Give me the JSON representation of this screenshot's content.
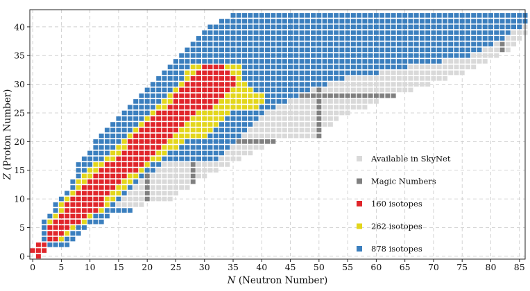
{
  "chart_data": {
    "type": "scatter",
    "subtype": "nuclide-chart",
    "xlabel_var": "N",
    "xlabel_text": " (Neutron Number)",
    "ylabel_var": "Z",
    "ylabel_text": " (Proton Number)",
    "xlim": [
      -0.5,
      86
    ],
    "ylim": [
      -0.5,
      43
    ],
    "xticks": [
      0,
      5,
      10,
      15,
      20,
      25,
      30,
      35,
      40,
      45,
      50,
      55,
      60,
      65,
      70,
      75,
      80,
      85
    ],
    "yticks": [
      0,
      5,
      10,
      15,
      20,
      25,
      30,
      35,
      40
    ],
    "grid": true,
    "legend_position": "lower-right",
    "magic_numbers": [
      2,
      8,
      20,
      28,
      50,
      82
    ],
    "colors": {
      "available": "#d9d9d9",
      "magic": "#808080",
      "set160": "#e0262b",
      "set262": "#e3d61c",
      "set878": "#3b7fbe"
    },
    "series": [
      {
        "name": "Available in SkyNet",
        "key": "available"
      },
      {
        "name": "Magic Numbers",
        "key": "magic"
      },
      {
        "name": "160 isotopes",
        "key": "set160"
      },
      {
        "name": "262 isotopes",
        "key": "set262"
      },
      {
        "name": "878 isotopes",
        "key": "set878"
      }
    ],
    "rows": [
      {
        "z": 0,
        "available": [
          1,
          1
        ],
        "c878": null,
        "c262": null,
        "c160": [
          1,
          1
        ]
      },
      {
        "z": 1,
        "available": [
          0,
          2
        ],
        "c878": null,
        "c262": null,
        "c160": [
          0,
          2
        ]
      },
      {
        "z": 2,
        "available": [
          1,
          6
        ],
        "c878": [
          1,
          6
        ],
        "c262": [
          1,
          2
        ],
        "c160": [
          1,
          2
        ]
      },
      {
        "z": 3,
        "available": [
          2,
          7
        ],
        "c878": [
          2,
          7
        ],
        "c262": [
          3,
          5
        ],
        "c160": [
          3,
          4
        ]
      },
      {
        "z": 4,
        "available": [
          2,
          8
        ],
        "c878": [
          2,
          8
        ],
        "c262": [
          3,
          6
        ],
        "c160": [
          3,
          5
        ]
      },
      {
        "z": 5,
        "available": [
          2,
          9
        ],
        "c878": [
          2,
          9
        ],
        "c262": [
          3,
          7
        ],
        "c160": [
          3,
          6
        ]
      },
      {
        "z": 6,
        "available": [
          2,
          12
        ],
        "c878": [
          2,
          12
        ],
        "c262": [
          3,
          9
        ],
        "c160": [
          4,
          8
        ]
      },
      {
        "z": 7,
        "available": [
          3,
          13
        ],
        "c878": [
          3,
          13
        ],
        "c262": [
          4,
          10
        ],
        "c160": [
          5,
          9
        ]
      },
      {
        "z": 8,
        "available": [
          4,
          17
        ],
        "c878": [
          4,
          17
        ],
        "c262": [
          5,
          12
        ],
        "c160": [
          6,
          11
        ]
      },
      {
        "z": 9,
        "available": [
          4,
          19
        ],
        "c878": [
          4,
          14
        ],
        "c262": [
          5,
          13
        ],
        "c160": [
          6,
          12
        ]
      },
      {
        "z": 10,
        "available": [
          5,
          24
        ],
        "c878": [
          5,
          15
        ],
        "c262": [
          6,
          14
        ],
        "c160": [
          7,
          12
        ]
      },
      {
        "z": 11,
        "available": [
          6,
          25
        ],
        "c878": [
          6,
          16
        ],
        "c262": [
          7,
          15
        ],
        "c160": [
          8,
          13
        ]
      },
      {
        "z": 12,
        "available": [
          7,
          27
        ],
        "c878": [
          7,
          17
        ],
        "c262": [
          8,
          16
        ],
        "c160": [
          9,
          14
        ]
      },
      {
        "z": 13,
        "available": [
          7,
          28
        ],
        "c878": [
          7,
          18
        ],
        "c262": [
          8,
          17
        ],
        "c160": [
          10,
          15
        ]
      },
      {
        "z": 14,
        "available": [
          8,
          30
        ],
        "c878": [
          8,
          19
        ],
        "c262": [
          9,
          18
        ],
        "c160": [
          11,
          16
        ]
      },
      {
        "z": 15,
        "available": [
          8,
          32
        ],
        "c878": [
          8,
          21
        ],
        "c262": [
          10,
          19
        ],
        "c160": [
          12,
          18
        ]
      },
      {
        "z": 16,
        "available": [
          8,
          34
        ],
        "c878": [
          8,
          22
        ],
        "c262": [
          11,
          20
        ],
        "c160": [
          13,
          19
        ]
      },
      {
        "z": 17,
        "available": [
          9,
          36
        ],
        "c878": [
          9,
          32
        ],
        "c262": [
          13,
          22
        ],
        "c160": [
          15,
          20
        ]
      },
      {
        "z": 18,
        "available": [
          10,
          38
        ],
        "c878": [
          10,
          33
        ],
        "c262": [
          14,
          23
        ],
        "c160": [
          16,
          21
        ]
      },
      {
        "z": 19,
        "available": [
          11,
          40
        ],
        "c878": [
          11,
          34
        ],
        "c262": [
          15,
          25
        ],
        "c160": [
          17,
          22
        ]
      },
      {
        "z": 20,
        "available": [
          11,
          42
        ],
        "c878": [
          11,
          35
        ],
        "c262": [
          16,
          26
        ],
        "c160": [
          17,
          23
        ]
      },
      {
        "z": 21,
        "available": [
          12,
          50
        ],
        "c878": [
          12,
          36
        ],
        "c262": [
          17,
          30
        ],
        "c160": [
          18,
          24
        ]
      },
      {
        "z": 22,
        "available": [
          13,
          50
        ],
        "c878": [
          13,
          37
        ],
        "c262": [
          18,
          31
        ],
        "c160": [
          19,
          25
        ]
      },
      {
        "z": 23,
        "available": [
          14,
          52
        ],
        "c878": [
          14,
          38
        ],
        "c262": [
          19,
          32
        ],
        "c160": [
          20,
          26
        ]
      },
      {
        "z": 24,
        "available": [
          15,
          53
        ],
        "c878": [
          15,
          39
        ],
        "c262": [
          20,
          33
        ],
        "c160": [
          21,
          27
        ]
      },
      {
        "z": 25,
        "available": [
          16,
          55
        ],
        "c878": [
          16,
          40
        ],
        "c262": [
          21,
          34
        ],
        "c160": [
          22,
          28
        ]
      },
      {
        "z": 26,
        "available": [
          17,
          58
        ],
        "c878": [
          17,
          42
        ],
        "c262": [
          22,
          39
        ],
        "c160": [
          24,
          31
        ]
      },
      {
        "z": 27,
        "available": [
          18,
          60
        ],
        "c878": [
          18,
          44
        ],
        "c262": [
          23,
          40
        ],
        "c160": [
          25,
          32
        ]
      },
      {
        "z": 28,
        "available": [
          19,
          63
        ],
        "c878": [
          19,
          46
        ],
        "c262": [
          24,
          40
        ],
        "c160": [
          25,
          33
        ]
      },
      {
        "z": 29,
        "available": [
          20,
          66
        ],
        "c878": [
          20,
          48
        ],
        "c262": [
          25,
          38
        ],
        "c160": [
          26,
          34
        ]
      },
      {
        "z": 30,
        "available": [
          21,
          69
        ],
        "c878": [
          21,
          51
        ],
        "c262": [
          26,
          37
        ],
        "c160": [
          27,
          35
        ]
      },
      {
        "z": 31,
        "available": [
          22,
          72
        ],
        "c878": [
          22,
          54
        ],
        "c262": [
          27,
          36
        ],
        "c160": [
          28,
          35
        ]
      },
      {
        "z": 32,
        "available": [
          23,
          75
        ],
        "c878": [
          23,
          60
        ],
        "c262": [
          27,
          36
        ],
        "c160": [
          29,
          34
        ]
      },
      {
        "z": 33,
        "available": [
          24,
          77
        ],
        "c878": [
          24,
          65
        ],
        "c262": [
          28,
          36
        ],
        "c160": [
          30,
          33
        ]
      },
      {
        "z": 34,
        "available": [
          25,
          79
        ],
        "c878": [
          25,
          71
        ],
        "c262": null,
        "c160": null
      },
      {
        "z": 35,
        "available": [
          26,
          81
        ],
        "c878": [
          26,
          76
        ],
        "c262": null,
        "c160": null
      },
      {
        "z": 36,
        "available": [
          27,
          83
        ],
        "c878": [
          27,
          78
        ],
        "c262": null,
        "c160": null
      },
      {
        "z": 37,
        "available": [
          28,
          84
        ],
        "c878": [
          28,
          80
        ],
        "c262": null,
        "c160": null
      },
      {
        "z": 38,
        "available": [
          29,
          85
        ],
        "c878": [
          29,
          82
        ],
        "c262": null,
        "c160": null
      },
      {
        "z": 39,
        "available": [
          30,
          86
        ],
        "c878": [
          30,
          83
        ],
        "c262": null,
        "c160": null
      },
      {
        "z": 40,
        "available": [
          31,
          86
        ],
        "c878": [
          31,
          85
        ],
        "c262": null,
        "c160": null
      },
      {
        "z": 41,
        "available": [
          33,
          86
        ],
        "c878": [
          33,
          86
        ],
        "c262": null,
        "c160": null
      },
      {
        "z": 42,
        "available": [
          35,
          86
        ],
        "c878": [
          35,
          86
        ],
        "c262": null,
        "c160": null
      }
    ]
  }
}
